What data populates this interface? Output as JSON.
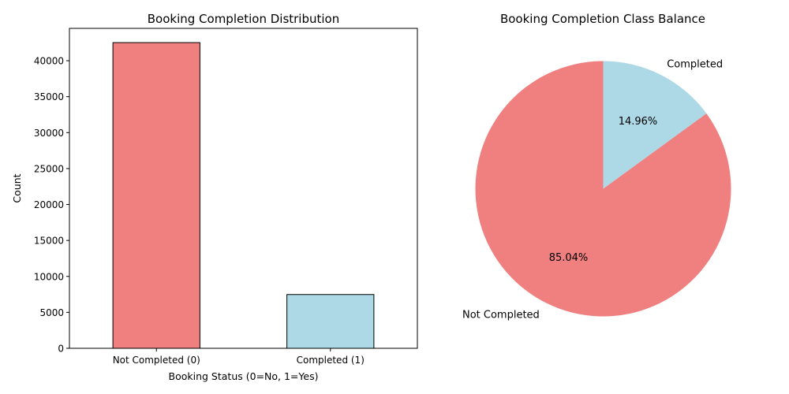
{
  "chart_data": [
    {
      "type": "bar",
      "title": "Booking Completion Distribution",
      "xlabel": "Booking Status (0=No, 1=Yes)",
      "ylabel": "Count",
      "categories": [
        "Not Completed (0)",
        "Completed (1)"
      ],
      "values": [
        42520,
        7480
      ],
      "colors": [
        "#f08080",
        "#add8e6"
      ],
      "edge_color": "#000000",
      "ylim": [
        0,
        44500
      ],
      "yticks": [
        0,
        5000,
        10000,
        15000,
        20000,
        25000,
        30000,
        35000,
        40000
      ],
      "grid": false
    },
    {
      "type": "pie",
      "title": "Booking Completion Class Balance",
      "labels": [
        "Not Completed",
        "Completed"
      ],
      "values": [
        85.04,
        14.96
      ],
      "pct_labels": [
        "85.04%",
        "14.96%"
      ],
      "colors": [
        "#f08080",
        "#add8e6"
      ],
      "start_angle_deg": 90
    }
  ]
}
